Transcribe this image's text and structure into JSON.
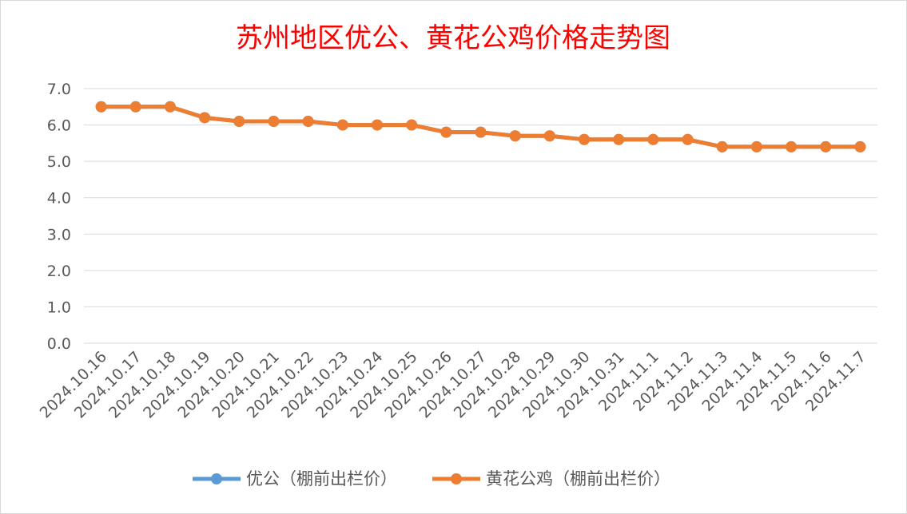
{
  "chart_data": {
    "type": "line",
    "title": "苏州地区优公、黄花公鸡价格走势图",
    "title_color": "#ff0000",
    "ylim": [
      0,
      7
    ],
    "y_ticks": [
      "0.0",
      "1.0",
      "2.0",
      "3.0",
      "4.0",
      "5.0",
      "6.0",
      "7.0"
    ],
    "grid": true,
    "legend_position": "bottom",
    "categories": [
      "2024.10.16",
      "2024.10.17",
      "2024.10.18",
      "2024.10.19",
      "2024.10.20",
      "2024.10.21",
      "2024.10.22",
      "2024.10.23",
      "2024.10.24",
      "2024.10.25",
      "2024.10.26",
      "2024.10.27",
      "2024.10.28",
      "2024.10.29",
      "2024.10.30",
      "2024.10.31",
      "2024.11.1",
      "2024.11.2",
      "2024.11.3",
      "2024.11.4",
      "2024.11.5",
      "2024.11.6",
      "2024.11.7"
    ],
    "series": [
      {
        "name": "优公（棚前出栏价）",
        "color": "#5b9bd5",
        "values": [
          6.5,
          6.5,
          6.5,
          6.2,
          6.1,
          6.1,
          6.1,
          6.0,
          6.0,
          6.0,
          5.8,
          5.8,
          5.7,
          5.7,
          5.6,
          5.6,
          5.6,
          5.6,
          5.4,
          5.4,
          5.4,
          5.4,
          5.4
        ]
      },
      {
        "name": "黄花公鸡（棚前出栏价）",
        "color": "#ed7d31",
        "values": [
          6.5,
          6.5,
          6.5,
          6.2,
          6.1,
          6.1,
          6.1,
          6.0,
          6.0,
          6.0,
          5.8,
          5.8,
          5.7,
          5.7,
          5.6,
          5.6,
          5.6,
          5.6,
          5.4,
          5.4,
          5.4,
          5.4,
          5.4
        ]
      }
    ]
  }
}
